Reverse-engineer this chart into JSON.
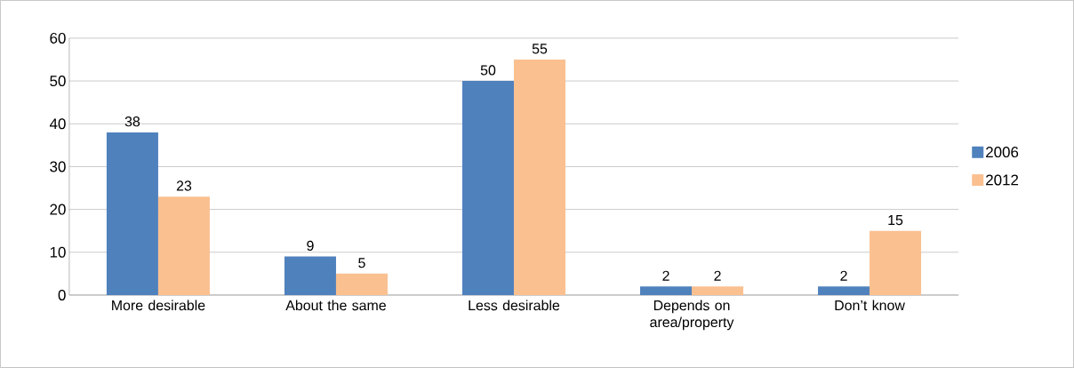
{
  "chart_data": {
    "type": "bar",
    "categories": [
      "More desirable",
      "About the same",
      "Less desirable",
      "Depends on area/property",
      "Don’t know"
    ],
    "series": [
      {
        "name": "2006",
        "color": "#4f81bd",
        "values": [
          38,
          9,
          50,
          2,
          2
        ]
      },
      {
        "name": "2012",
        "color": "#fac090",
        "values": [
          23,
          5,
          55,
          2,
          15
        ]
      }
    ],
    "ylim": [
      0,
      60
    ],
    "yticks": [
      0,
      10,
      20,
      30,
      40,
      50,
      60
    ],
    "grid": "y",
    "legend": "right",
    "data_labels": true
  }
}
